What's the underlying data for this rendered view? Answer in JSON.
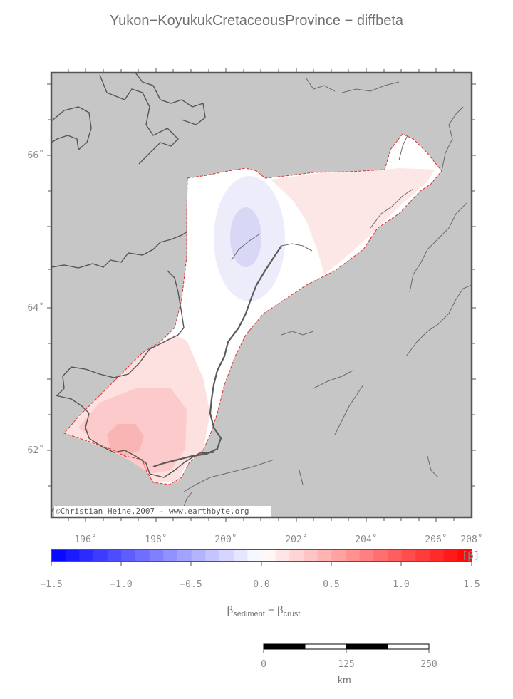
{
  "title": "Yukon−KoyukukCretaceousProvince − diffbeta",
  "map": {
    "lon_labels": [
      "196˚",
      "198˚",
      "200˚",
      "202˚",
      "204˚",
      "206˚",
      "208˚"
    ],
    "lat_labels": [
      "66˚",
      "64˚",
      "62˚"
    ],
    "credit": "©Christian Heine,2007 - www.earthbyte.org",
    "background_color": "#c6c6c6",
    "outline_color": "#e03030"
  },
  "colorbar": {
    "tick_labels": [
      "−1.5",
      "−1.0",
      "−0.5",
      "0.0",
      "0.5",
      "1.0",
      "1.5"
    ],
    "unit": "[β]",
    "min": -1.5,
    "max": 1.5,
    "low_color": "#0000ff",
    "mid_color": "#ffffff",
    "high_color": "#ff0000"
  },
  "axis_title": {
    "beta": "β",
    "sub1": "sediment",
    "minus": " − ",
    "sub2": "crust"
  },
  "scalebar": {
    "labels": [
      "0",
      "125",
      "250"
    ],
    "unit": "km"
  }
}
